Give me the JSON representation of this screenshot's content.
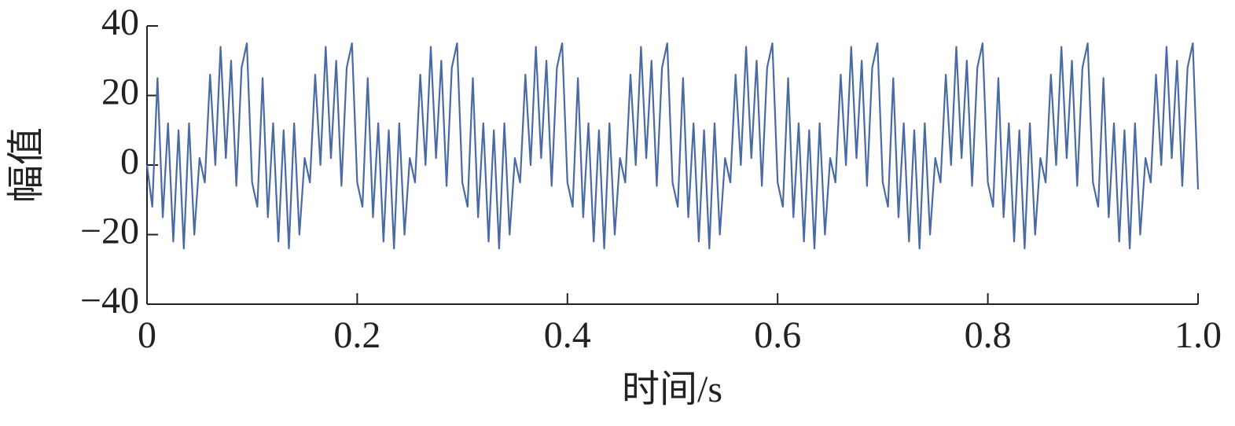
{
  "chart_data": {
    "type": "line",
    "xlabel": "时间/s",
    "ylabel": "幅值",
    "xlim": [
      0,
      1
    ],
    "ylim": [
      -40,
      40
    ],
    "xticks": [
      0,
      0.2,
      0.4,
      0.6,
      0.8,
      {
        "value": 1,
        "label": "1.0"
      }
    ],
    "yticks": [
      {
        "value": -40,
        "label": "−40"
      },
      {
        "value": -20,
        "label": "−20"
      },
      0,
      20,
      40
    ],
    "grid": false,
    "series": [
      {
        "color": "#4a6aa5",
        "x": [
          0,
          0.005,
          0.01,
          0.015,
          0.02,
          0.025,
          0.03,
          0.035,
          0.04,
          0.045,
          0.05,
          0.055,
          0.06,
          0.065,
          0.07,
          0.075,
          0.08,
          0.085,
          0.09,
          0.095,
          0.1,
          0.105,
          0.11,
          0.115,
          0.12,
          0.125,
          0.13,
          0.135,
          0.14,
          0.145,
          0.15,
          0.155,
          0.16,
          0.165,
          0.17,
          0.175,
          0.18,
          0.185,
          0.19,
          0.195,
          0.2,
          0.205,
          0.21,
          0.215,
          0.22,
          0.225,
          0.23,
          0.235,
          0.24,
          0.245,
          0.25,
          0.255,
          0.26,
          0.265,
          0.27,
          0.275,
          0.28,
          0.285,
          0.29,
          0.295,
          0.3,
          0.305,
          0.31,
          0.315,
          0.32,
          0.325,
          0.33,
          0.335,
          0.34,
          0.345,
          0.35,
          0.355,
          0.36,
          0.365,
          0.37,
          0.375,
          0.38,
          0.385,
          0.39,
          0.395,
          0.4,
          0.405,
          0.41,
          0.415,
          0.42,
          0.425,
          0.43,
          0.435,
          0.44,
          0.445,
          0.45,
          0.455,
          0.46,
          0.465,
          0.47,
          0.475,
          0.48,
          0.485,
          0.49,
          0.495,
          0.5,
          0.505,
          0.51,
          0.515,
          0.52,
          0.525,
          0.53,
          0.535,
          0.54,
          0.545,
          0.55,
          0.555,
          0.56,
          0.565,
          0.57,
          0.575,
          0.58,
          0.585,
          0.59,
          0.595,
          0.6,
          0.605,
          0.61,
          0.615,
          0.62,
          0.625,
          0.63,
          0.635,
          0.64,
          0.645,
          0.65,
          0.655,
          0.66,
          0.665,
          0.67,
          0.675,
          0.68,
          0.685,
          0.69,
          0.695,
          0.7,
          0.705,
          0.71,
          0.715,
          0.72,
          0.725,
          0.73,
          0.735,
          0.74,
          0.745,
          0.75,
          0.755,
          0.76,
          0.765,
          0.77,
          0.775,
          0.78,
          0.785,
          0.79,
          0.795,
          0.8,
          0.805,
          0.81,
          0.815,
          0.82,
          0.825,
          0.83,
          0.835,
          0.84,
          0.845,
          0.85,
          0.855,
          0.86,
          0.865,
          0.87,
          0.875,
          0.88,
          0.885,
          0.89,
          0.895,
          0.9,
          0.905,
          0.91,
          0.915,
          0.92,
          0.925,
          0.93,
          0.935,
          0.94,
          0.945,
          0.95,
          0.955,
          0.96,
          0.965,
          0.97,
          0.975,
          0.98,
          0.985,
          0.99,
          0.995,
          1
        ],
        "values": [
          0,
          -12,
          25,
          -15,
          12,
          -22,
          10,
          -24,
          12,
          -20,
          2,
          -5,
          26,
          0,
          34,
          2,
          30,
          -6,
          28,
          35,
          -5,
          -12,
          25,
          -15,
          12,
          -22,
          10,
          -24,
          12,
          -20,
          2,
          -5,
          26,
          0,
          34,
          2,
          30,
          -6,
          28,
          35,
          -5,
          -12,
          25,
          -15,
          12,
          -22,
          10,
          -24,
          12,
          -20,
          2,
          -5,
          26,
          0,
          34,
          2,
          30,
          -6,
          28,
          35,
          -5,
          -12,
          25,
          -15,
          12,
          -22,
          10,
          -24,
          12,
          -20,
          2,
          -5,
          26,
          0,
          34,
          2,
          30,
          -6,
          28,
          35,
          -5,
          -12,
          25,
          -15,
          12,
          -22,
          10,
          -24,
          12,
          -20,
          2,
          -5,
          26,
          0,
          34,
          2,
          30,
          -6,
          28,
          35,
          -5,
          -12,
          25,
          -15,
          12,
          -22,
          10,
          -24,
          12,
          -20,
          2,
          -5,
          26,
          0,
          34,
          2,
          30,
          -6,
          28,
          35,
          -5,
          -12,
          25,
          -15,
          12,
          -22,
          10,
          -24,
          12,
          -20,
          2,
          -5,
          26,
          0,
          34,
          2,
          30,
          -6,
          28,
          35,
          -5,
          -12,
          25,
          -15,
          12,
          -22,
          10,
          -24,
          12,
          -20,
          2,
          -5,
          26,
          0,
          34,
          2,
          30,
          -6,
          28,
          35,
          -5,
          -12,
          25,
          -15,
          12,
          -22,
          10,
          -24,
          12,
          -20,
          2,
          -5,
          26,
          0,
          34,
          2,
          30,
          -6,
          28,
          35,
          -5,
          -12,
          25,
          -15,
          12,
          -22,
          10,
          -24,
          12,
          -20,
          2,
          -5,
          26,
          0,
          34,
          2,
          30,
          -6,
          28,
          35,
          -7
        ]
      }
    ]
  }
}
